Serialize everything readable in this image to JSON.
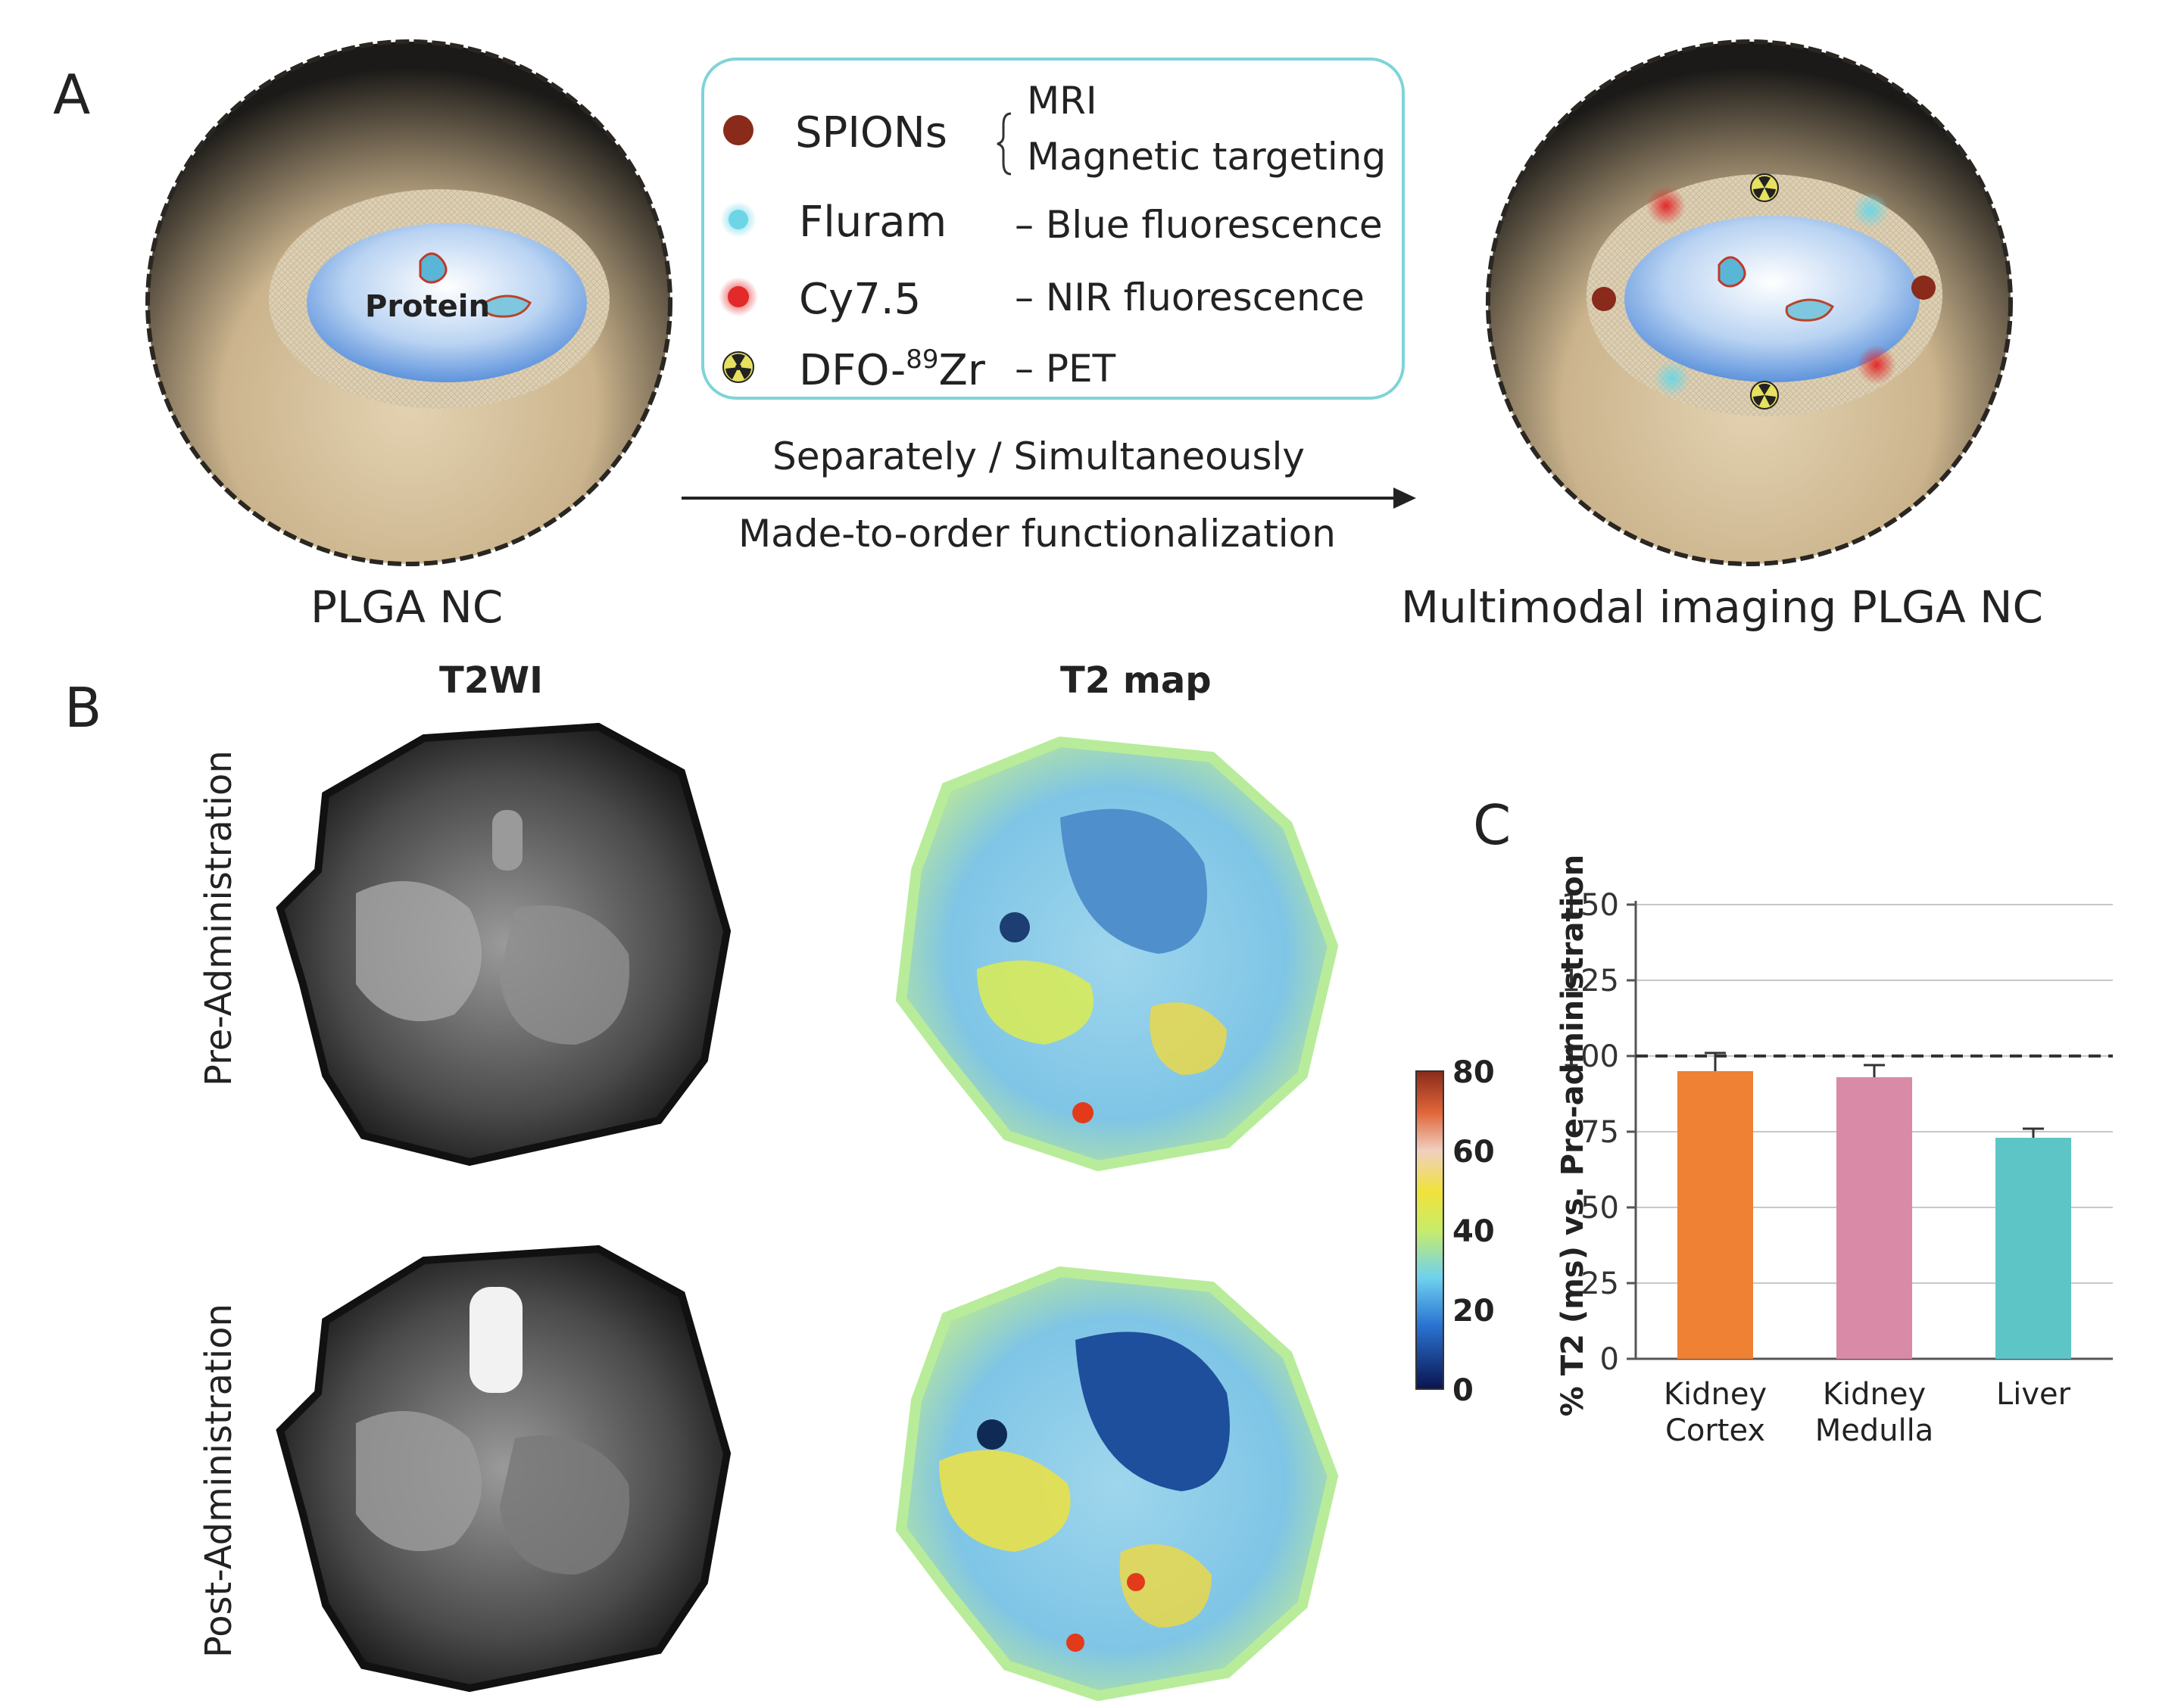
{
  "panels": {
    "a": "A",
    "b": "B",
    "c": "C"
  },
  "panel_a": {
    "left_caption": "PLGA NC",
    "right_caption": "Multimodal imaging PLGA NC",
    "protein_label": "Protein",
    "arrow_top": "Separately / Simultaneously",
    "arrow_bottom": "Made-to-order functionalization",
    "legend": {
      "spions": "SPIONs",
      "spions_uses": [
        "MRI",
        "Magnetic targeting"
      ],
      "fluram": "Fluram",
      "fluram_use": "– Blue fluorescence",
      "cy75": "Cy7.5",
      "cy75_use": "– NIR fluorescence",
      "dfo_prefix": "DFO-",
      "dfo_sup": "89",
      "dfo_suffix": "Zr",
      "dfo_use": "– PET"
    },
    "colors": {
      "spions": "#8a2a1a",
      "fluram": "#6cd6e6",
      "cy75": "#e22a2a",
      "box_border": "#7fd3d8"
    }
  },
  "panel_b": {
    "col1": "T2WI",
    "col2": "T2 map",
    "row1": "Pre-Administration",
    "row2": "Post-Administration",
    "colorbar_ticks": [
      "80",
      "60",
      "40",
      "20",
      "0"
    ]
  },
  "chart_data": {
    "type": "bar",
    "categories": [
      [
        "Kidney",
        "Cortex"
      ],
      [
        "Kidney",
        "Medulla"
      ],
      [
        "Liver"
      ]
    ],
    "values": [
      95,
      93,
      73
    ],
    "errors": [
      6,
      4,
      3
    ],
    "colors": [
      "#ee8133",
      "#d98aa6",
      "#5ec5c6"
    ],
    "ylabel": "% T2 (ms) vs. Pre-administration",
    "ylim": [
      0,
      150
    ],
    "yticks": [
      0,
      25,
      50,
      75,
      100,
      125,
      150
    ],
    "reference_line": 100,
    "grid": true
  }
}
